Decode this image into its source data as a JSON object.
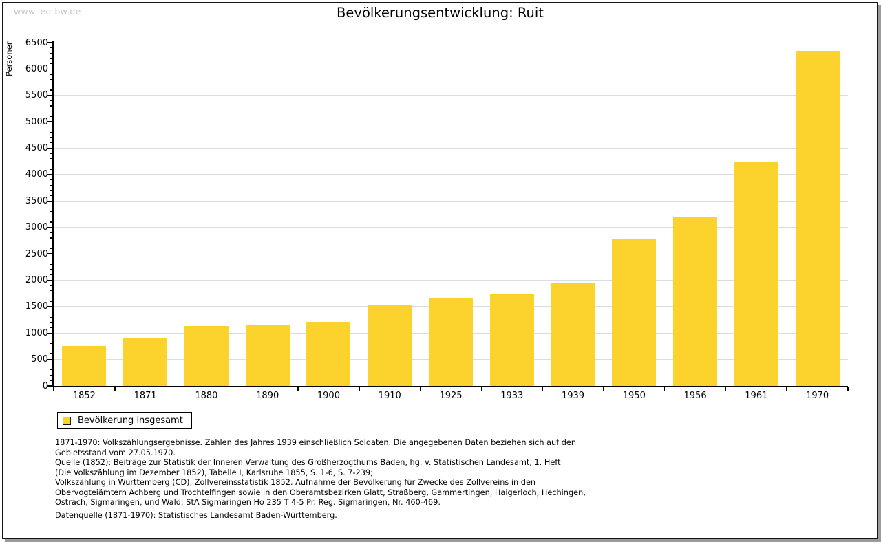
{
  "watermark": "www.leo-bw.de",
  "chart_data": {
    "type": "bar",
    "title": "Bevölkerungsentwicklung: Ruit",
    "ylabel": "Personen",
    "xlabel": "",
    "categories": [
      "1852",
      "1871",
      "1880",
      "1890",
      "1900",
      "1910",
      "1925",
      "1933",
      "1939",
      "1950",
      "1956",
      "1961",
      "1970"
    ],
    "values": [
      750,
      900,
      1130,
      1150,
      1215,
      1540,
      1650,
      1735,
      1950,
      2790,
      3210,
      4240,
      6350
    ],
    "series_name": "Bevölkerung insgesamt",
    "ylim": [
      0,
      6500
    ],
    "ytick_step": 500,
    "yminor_step": 100,
    "ytick_labels": [
      "0",
      "500",
      "1000",
      "1500",
      "2000",
      "2500",
      "3000",
      "3500",
      "4000",
      "4500",
      "5000",
      "5500",
      "6000",
      "6500"
    ],
    "grid": true,
    "legend_position": "bottom-left",
    "bar_color": "#FCD32D",
    "grid_color": "#DCDCDC",
    "axis_color": "#000000"
  },
  "legend": {
    "label": "Bevölkerung insgesamt"
  },
  "footer": {
    "notes": [
      "1871-1970: Volkszählungsergebnisse. Zahlen des Jahres 1939 einschließlich Soldaten. Die angegebenen Daten beziehen sich auf den",
      "Gebietsstand vom 27.05.1970.",
      "Quelle (1852): Beiträge zur Statistik der Inneren Verwaltung des Großherzogthums Baden, hg. v. Statistischen Landesamt, 1. Heft",
      "(Die Volkszählung im Dezember 1852), Tabelle I, Karlsruhe 1855, S. 1-6, S. 7-239;",
      "Volkszählung in Württemberg (CD), Zollvereinsstatistik 1852. Aufnahme der Bevölkerung für Zwecke des Zollvereins in den",
      "Obervogteiämtern Achberg und Trochtelfingen sowie in den Oberamtsbezirken Glatt, Straßberg, Gammertingen, Haigerloch, Hechingen,",
      "Ostrach, Sigmaringen, und Wald; StA Sigmaringen Ho 235 T 4-5 Pr. Reg. Sigmaringen, Nr. 460-469."
    ],
    "datasource": "Datenquelle (1871-1970): Statistisches Landesamt Baden-Württemberg."
  }
}
